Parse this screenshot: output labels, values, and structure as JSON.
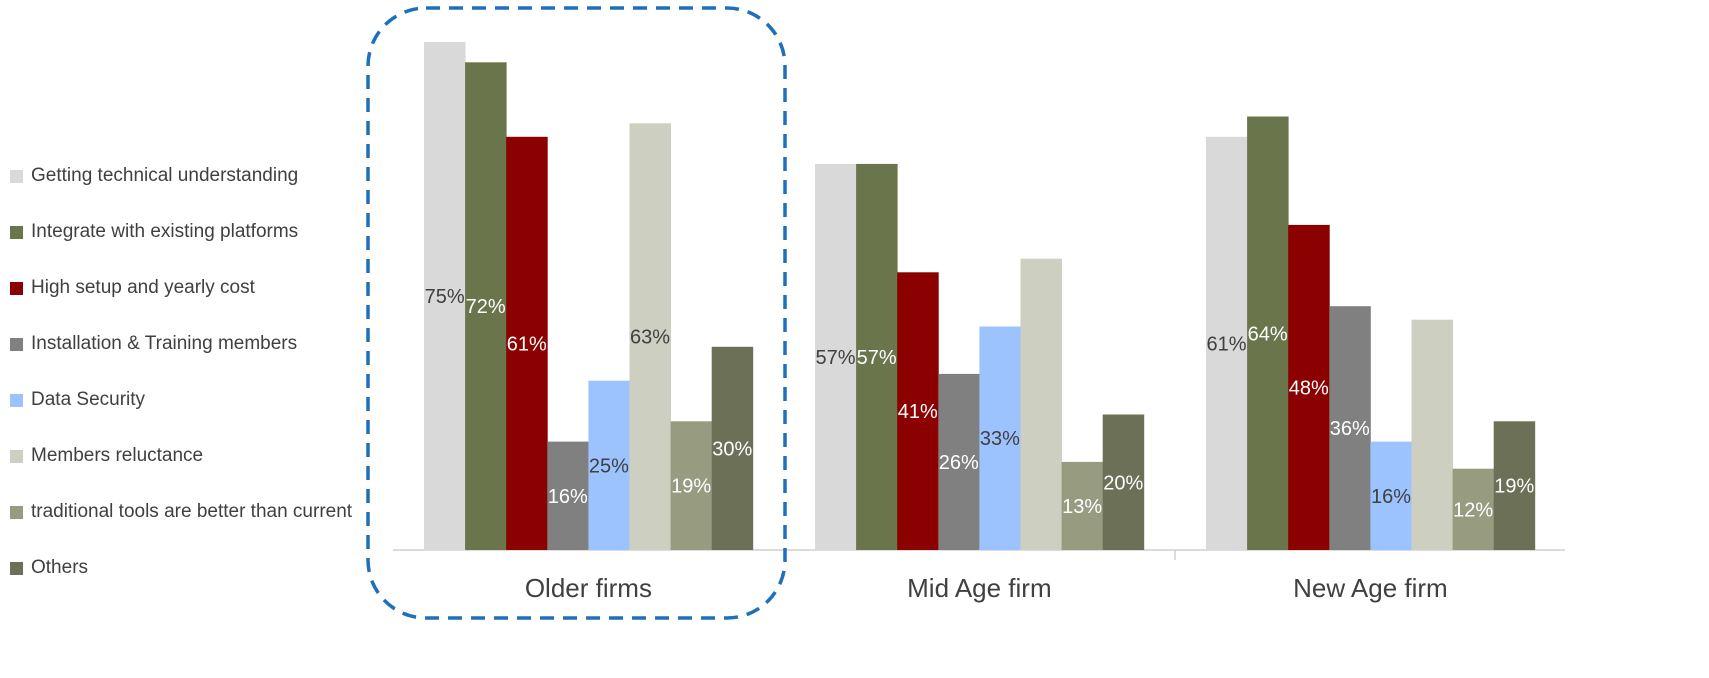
{
  "chart_data": {
    "type": "bar",
    "title": "",
    "xlabel": "",
    "ylabel": "",
    "ylim": [
      0,
      80
    ],
    "grid": false,
    "legend_position": "left",
    "categories": [
      "Older firms",
      "Mid Age firm",
      "New Age firm"
    ],
    "highlighted_category": "Older firms",
    "series": [
      {
        "name": "Getting technical understanding",
        "color": "#d9d9d9",
        "values": [
          75,
          57,
          61
        ],
        "label_color": "#404040"
      },
      {
        "name": "Integrate with existing platforms",
        "color": "#6b754b",
        "values": [
          72,
          57,
          64
        ],
        "label_color": "#ffffff"
      },
      {
        "name": "High setup and yearly cost",
        "color": "#8b0000",
        "values": [
          61,
          41,
          48
        ],
        "label_color": "#ffffff"
      },
      {
        "name": "Installation & Training members",
        "color": "#808080",
        "values": [
          16,
          26,
          36
        ],
        "label_color": "#ffffff"
      },
      {
        "name": "Data Security",
        "color": "#9dc3ff",
        "values": [
          25,
          33,
          16
        ],
        "label_color": "#404040"
      },
      {
        "name": "Members reluctance",
        "color": "#cdd0c0",
        "values": [
          63,
          43,
          34
        ],
        "label_color": "#404040"
      },
      {
        "name": "traditional tools are better than current",
        "color": "#979c81",
        "values": [
          19,
          13,
          12
        ],
        "label_color": "#ffffff"
      },
      {
        "name": "Others",
        "color": "#6b7057",
        "values": [
          30,
          20,
          19
        ],
        "label_color": "#ffffff"
      }
    ],
    "data_labels": [
      [
        "75%",
        "72%",
        "61%",
        "16%",
        "25%",
        "63%",
        "19%",
        "30%"
      ],
      [
        "57%",
        "57%",
        "41%",
        "26%",
        "33%",
        "",
        "13%",
        "20%"
      ],
      [
        "61%",
        "64%",
        "48%",
        "36%",
        "16%",
        "",
        "12%",
        "19%"
      ]
    ]
  }
}
